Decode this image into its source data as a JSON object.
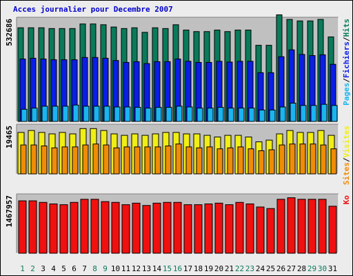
{
  "chart_data": {
    "type": "bar",
    "title": "Acces journalier pour Decembre 2007",
    "categories": [
      "1",
      "2",
      "3",
      "4",
      "5",
      "6",
      "7",
      "8",
      "9",
      "10",
      "11",
      "12",
      "13",
      "14",
      "15",
      "16",
      "17",
      "18",
      "19",
      "20",
      "21",
      "22",
      "23",
      "24",
      "25",
      "26",
      "27",
      "28",
      "29",
      "30",
      "31"
    ],
    "weekend_days": [
      "1",
      "2",
      "8",
      "9",
      "15",
      "16",
      "22",
      "23",
      "29",
      "30"
    ],
    "colors": {
      "hits": "#0a7a5a",
      "fichiers": "#0a1ee6",
      "pages": "#1ab4f0",
      "visites": "#f0ee14",
      "sites": "#f08c08",
      "ko": "#f01010",
      "weekend_label": "#0a7a5a",
      "weekday_label": "#000000",
      "title": "#0000cc",
      "panel_bg": "#c0c0c0",
      "frame_bg": "#ececec"
    },
    "panels": [
      {
        "name": "traffic",
        "scale_label": "532686",
        "ymax": 532686,
        "legend": [
          {
            "text": "Pages",
            "color": "#1ab4f0"
          },
          {
            "text": "/",
            "color": "#000000"
          },
          {
            "text": "Fichiers",
            "color": "#0a1ee6"
          },
          {
            "text": "/",
            "color": "#000000"
          },
          {
            "text": "Hits",
            "color": "#0a7a5a"
          }
        ],
        "series": [
          {
            "name": "Hits",
            "color": "#0a7a5a",
            "values": [
              492000,
              492000,
              492000,
              488000,
              488000,
              488000,
              512000,
              512000,
              508000,
              496000,
              488000,
              492000,
              468000,
              492000,
              488000,
              508000,
              480000,
              472000,
              472000,
              480000,
              472000,
              480000,
              480000,
              400000,
              400000,
              560000,
              536000,
              528000,
              528000,
              536000,
              444000
            ]
          },
          {
            "name": "Fichiers",
            "color": "#0a1ee6",
            "values": [
              328000,
              332000,
              328000,
              324000,
              324000,
              324000,
              336000,
              336000,
              332000,
              320000,
              310000,
              314000,
              304000,
              314000,
              314000,
              328000,
              316000,
              310000,
              310000,
              316000,
              312000,
              316000,
              316000,
              256000,
              256000,
              340000,
              376000,
              352000,
              346000,
              350000,
              300000
            ]
          },
          {
            "name": "Pages",
            "color": "#1ab4f0",
            "values": [
              64000,
              70000,
              80000,
              80000,
              80000,
              86000,
              80000,
              80000,
              80000,
              76000,
              76000,
              74000,
              70000,
              74000,
              74000,
              80000,
              76000,
              70000,
              70000,
              74000,
              70000,
              70000,
              70000,
              60000,
              60000,
              76000,
              96000,
              84000,
              84000,
              90000,
              84000
            ]
          }
        ]
      },
      {
        "name": "visits",
        "scale_label": "19465",
        "ymax": 19465,
        "legend": [
          {
            "text": "Sites",
            "color": "#f08c08"
          },
          {
            "text": "/",
            "color": "#000000"
          },
          {
            "text": "Visites",
            "color": "#f0ee14"
          }
        ],
        "series": [
          {
            "name": "Visites",
            "color": "#f0ee14",
            "values": [
              17200,
              18000,
              17200,
              16600,
              17200,
              16600,
              18800,
              18800,
              18000,
              16600,
              16000,
              16600,
              16000,
              16600,
              17200,
              17200,
              16600,
              16600,
              16000,
              15300,
              16000,
              16000,
              15300,
              13300,
              14000,
              16600,
              18000,
              17200,
              17200,
              18000,
              16000
            ]
          },
          {
            "name": "Sites",
            "color": "#f08c08",
            "values": [
              12000,
              12000,
              11600,
              10800,
              11200,
              11200,
              12000,
              12400,
              12000,
              10800,
              11200,
              11200,
              11200,
              11200,
              11600,
              12400,
              11200,
              10800,
              11200,
              10400,
              10800,
              11200,
              10400,
              9600,
              10000,
              12000,
              12400,
              12400,
              12400,
              12000,
              10400
            ]
          }
        ]
      },
      {
        "name": "volume",
        "scale_label": "1467957",
        "ymax": 1467957,
        "legend": [
          {
            "text": "Ko",
            "color": "#f01010"
          }
        ],
        "series": [
          {
            "name": "Ko",
            "color": "#f01010",
            "values": [
              1360000,
              1360000,
              1320000,
              1280000,
              1260000,
              1320000,
              1400000,
              1400000,
              1340000,
              1320000,
              1260000,
              1300000,
              1240000,
              1300000,
              1320000,
              1320000,
              1260000,
              1260000,
              1280000,
              1300000,
              1260000,
              1320000,
              1280000,
              1200000,
              1160000,
              1400000,
              1440000,
              1400000,
              1400000,
              1400000,
              1220000
            ]
          }
        ]
      }
    ]
  }
}
